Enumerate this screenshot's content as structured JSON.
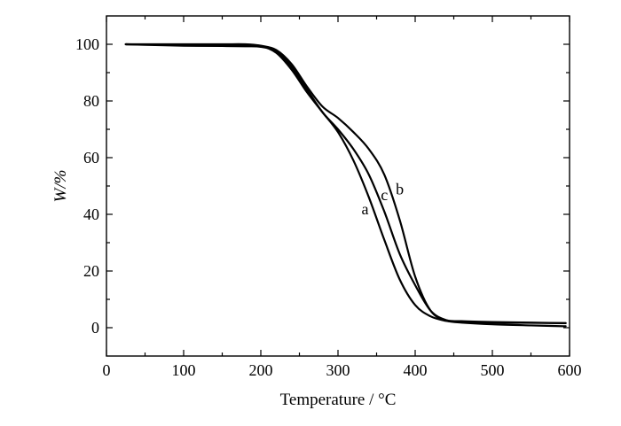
{
  "chart_data": {
    "type": "line",
    "title": "",
    "xlabel": "Temperature / °C",
    "ylabel": "W/%",
    "xlim": [
      0,
      600
    ],
    "ylim": [
      -10,
      110
    ],
    "xticks": [
      0,
      100,
      200,
      300,
      400,
      500,
      600
    ],
    "yticks": [
      0,
      20,
      40,
      60,
      80,
      100
    ],
    "grid": false,
    "legend": "none",
    "annotations": [
      {
        "text": "a",
        "x": 335,
        "y": 40
      },
      {
        "text": "c",
        "x": 360,
        "y": 45
      },
      {
        "text": "b",
        "x": 380,
        "y": 47
      }
    ],
    "series": [
      {
        "name": "a",
        "x": [
          25,
          50,
          100,
          150,
          180,
          200,
          220,
          240,
          260,
          280,
          300,
          320,
          340,
          360,
          380,
          400,
          420,
          440,
          460,
          500,
          550,
          595
        ],
        "y": [
          100,
          99.9,
          99.8,
          99.8,
          99.7,
          99.4,
          97,
          91,
          83,
          76,
          69,
          59,
          46,
          31,
          17,
          8,
          4,
          2.4,
          1.8,
          1.2,
          0.8,
          0.5
        ]
      },
      {
        "name": "b",
        "x": [
          25,
          50,
          100,
          150,
          180,
          200,
          220,
          240,
          260,
          280,
          300,
          320,
          340,
          360,
          380,
          400,
          420,
          440,
          460,
          500,
          550,
          595
        ],
        "y": [
          100,
          100,
          100,
          100,
          100,
          99.5,
          98,
          93,
          85,
          78,
          74,
          69,
          63,
          54,
          38,
          18,
          6,
          2.6,
          2.1,
          1.8,
          1.7,
          1.6
        ]
      },
      {
        "name": "c",
        "x": [
          25,
          50,
          100,
          150,
          180,
          200,
          220,
          240,
          260,
          280,
          300,
          320,
          340,
          360,
          380,
          400,
          420,
          440,
          460,
          500,
          550,
          595
        ],
        "y": [
          100,
          99.8,
          99.5,
          99.4,
          99.3,
          99.1,
          97.5,
          92,
          84,
          76,
          70,
          63,
          54,
          41,
          26,
          15,
          6,
          2.7,
          2.3,
          2,
          1.8,
          1.6
        ]
      }
    ]
  }
}
